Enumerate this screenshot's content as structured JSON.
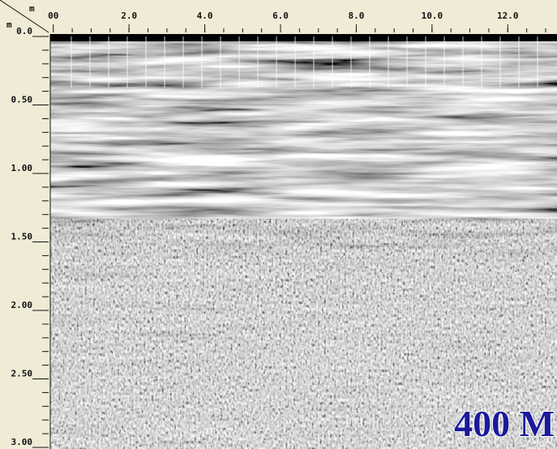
{
  "chart_data": {
    "type": "radargram",
    "x_unit": "m",
    "y_unit": "m",
    "xlim": [
      -0.08,
      13.3
    ],
    "ylim": [
      0,
      3.0
    ],
    "xticks": [
      {
        "value": 0,
        "label": "00"
      },
      {
        "value": 2,
        "label": "2.0"
      },
      {
        "value": 4,
        "label": "4.0"
      },
      {
        "value": 6,
        "label": "6.0"
      },
      {
        "value": 8,
        "label": "8.0"
      },
      {
        "value": 10,
        "label": "10.0"
      },
      {
        "value": 12,
        "label": "12.0"
      }
    ],
    "yticks": [
      {
        "value": 0,
        "label": "0.0"
      },
      {
        "value": 0.5,
        "label": "0.50"
      },
      {
        "value": 1,
        "label": "1.00"
      },
      {
        "value": 1.5,
        "label": "1.50"
      },
      {
        "value": 2,
        "label": "2.00"
      },
      {
        "value": 2.5,
        "label": "2.50"
      },
      {
        "value": 3,
        "label": "3.00"
      }
    ],
    "annotation": "400 M"
  }
}
